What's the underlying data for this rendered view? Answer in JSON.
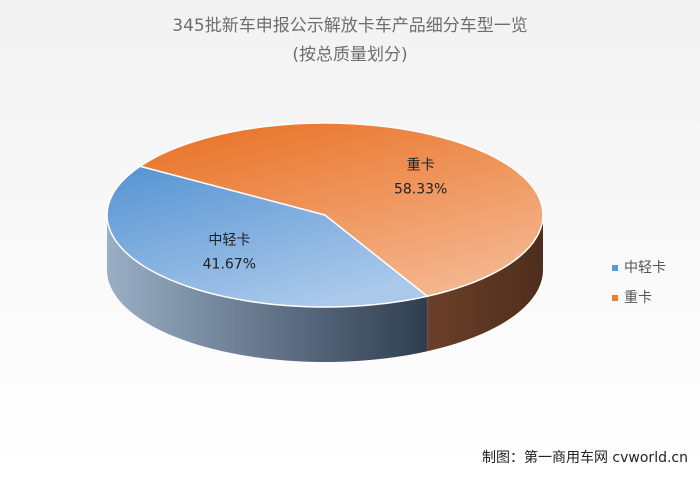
{
  "chart_data": {
    "type": "pie3d",
    "title": "345批新车申报公示解放卡车产品细分车型一览",
    "subtitle": "(按总质量划分)",
    "categories": [
      "中轻卡",
      "重卡"
    ],
    "values": [
      41.67,
      58.33
    ],
    "value_labels": [
      "41.67%",
      "58.33%"
    ],
    "colors": [
      "#5b9bd5",
      "#ed7d31"
    ],
    "legend": "right",
    "source": "制图：第一商用车网 cvworld.cn"
  }
}
